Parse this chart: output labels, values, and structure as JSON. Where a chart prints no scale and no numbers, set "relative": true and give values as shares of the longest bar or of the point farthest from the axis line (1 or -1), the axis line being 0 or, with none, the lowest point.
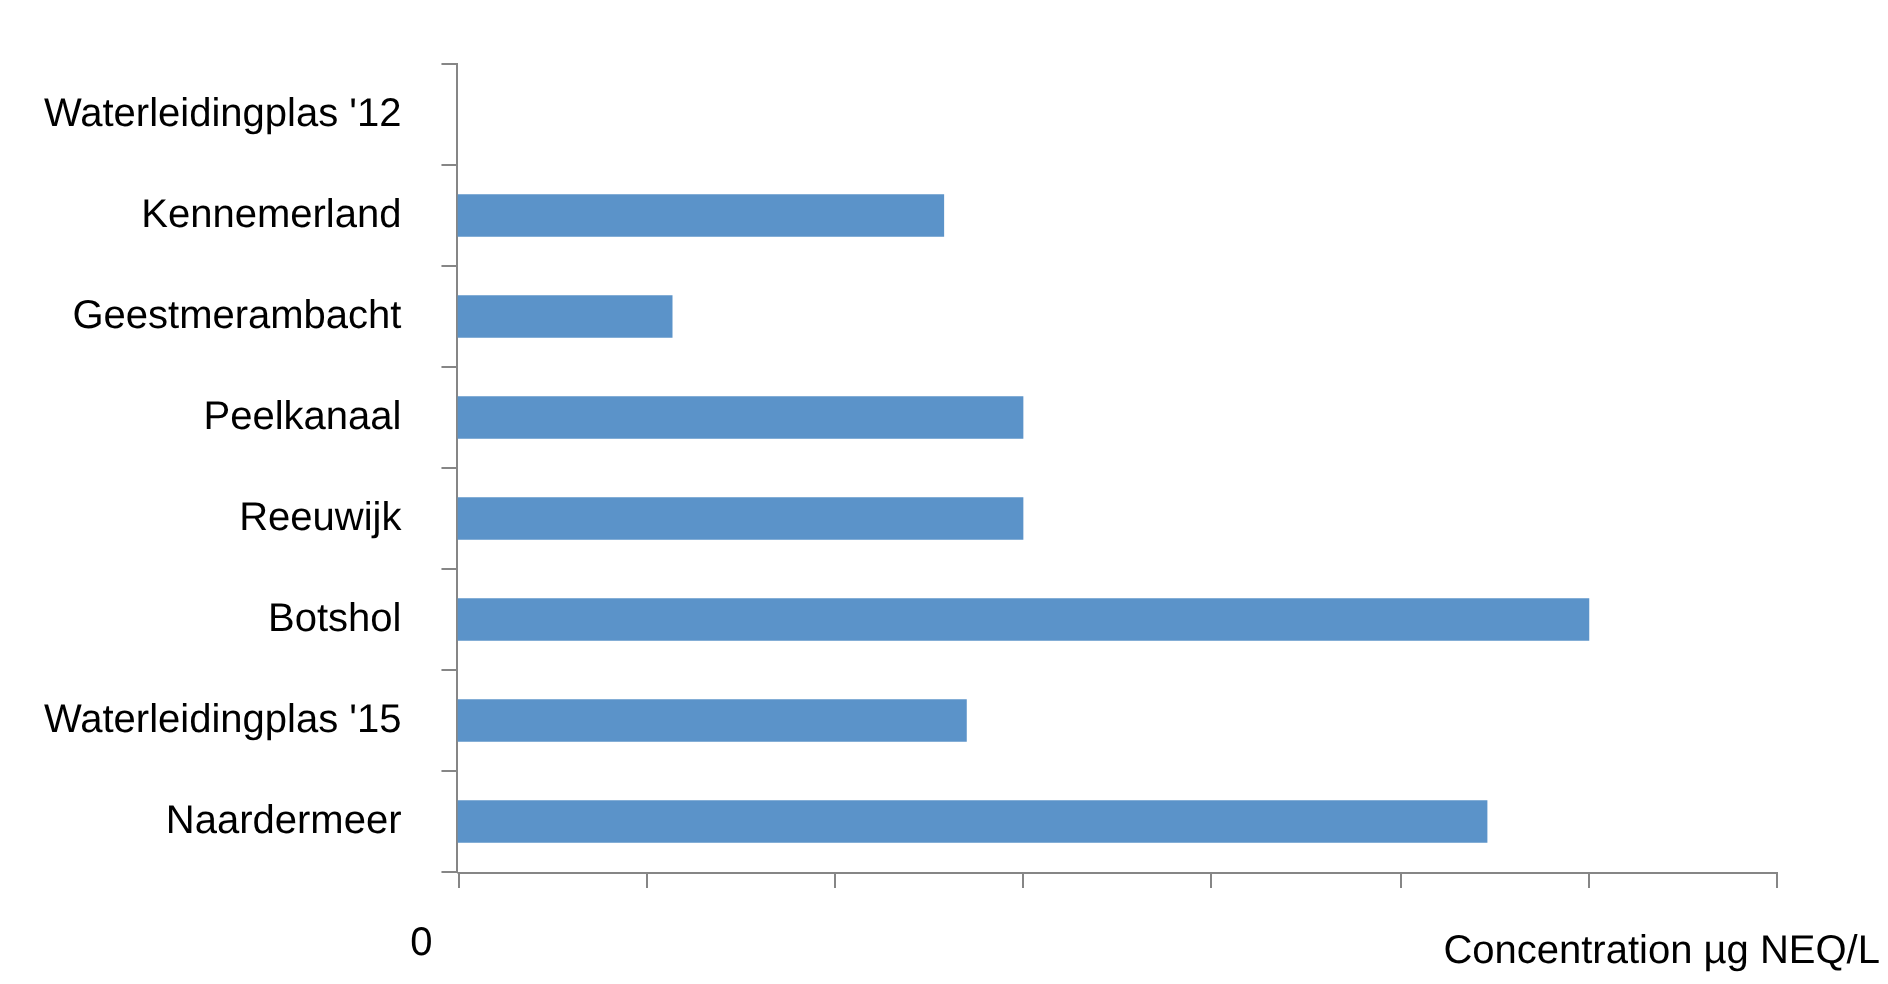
{
  "chart_data": {
    "type": "bar",
    "orientation": "horizontal",
    "relative": true,
    "categories": [
      "Waterleidingplas '12",
      "Kennemerland",
      "Geestmerambacht",
      "Peelkanaal",
      "Reeuwijk",
      "Botshol",
      "Waterleidingplas '15",
      "Naardermeer"
    ],
    "values": [
      0,
      0.43,
      0.19,
      0.5,
      0.5,
      1,
      0.45,
      0.91
    ],
    "color": "#5b93c9",
    "xlabel": "Concentration µg NEQ/L",
    "annotations": [
      "0"
    ],
    "grid": false,
    "legend": false
  }
}
